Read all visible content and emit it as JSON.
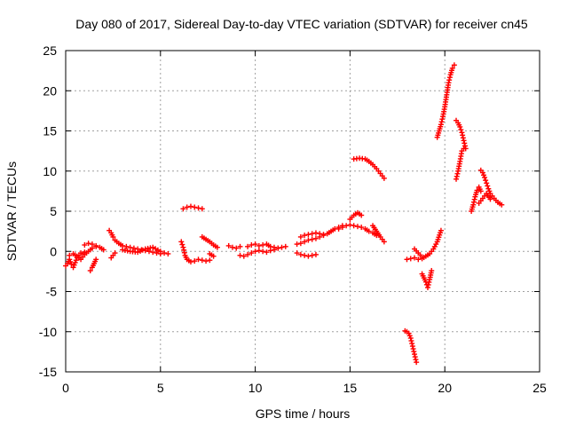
{
  "chart_data": {
    "type": "scatter",
    "title": "Day 080 of 2017, Sidereal Day-to-day VTEC variation (SDTVAR) for receiver cn45",
    "xlabel": "GPS time / hours",
    "ylabel": "SDTVAR / TECUs",
    "xlim": [
      0,
      25
    ],
    "ylim": [
      -15,
      25
    ],
    "xticks": [
      0,
      5,
      10,
      15,
      20,
      25
    ],
    "yticks": [
      -15,
      -10,
      -5,
      0,
      5,
      10,
      15,
      20,
      25
    ],
    "xtick_labels": [
      "0",
      "5",
      "10",
      "15",
      "20",
      "25"
    ],
    "ytick_labels": [
      "-15",
      "-10",
      "-5",
      "0",
      "5",
      "10",
      "15",
      "20",
      "25"
    ],
    "grid": true,
    "marker": "+",
    "color": "#ff0000",
    "series": [
      {
        "name": "SDTVAR",
        "segments": [
          {
            "x": [
              0.0,
              0.1,
              0.2,
              0.3,
              0.4,
              0.5,
              0.6,
              0.7,
              0.8,
              0.9,
              1.0
            ],
            "y": [
              -1.8,
              -1.5,
              -1.0,
              -1.6,
              -2.0,
              -1.4,
              -0.8,
              -0.5,
              -0.2,
              -0.3,
              -0.1
            ]
          },
          {
            "x": [
              0.2,
              0.4,
              0.6,
              0.8,
              1.0,
              1.2,
              1.4,
              1.6
            ],
            "y": [
              -0.5,
              -0.3,
              -0.6,
              -1.0,
              -0.4,
              0.0,
              0.4,
              0.6
            ]
          },
          {
            "x": [
              1.0,
              1.2,
              1.4,
              1.6,
              1.8,
              2.0
            ],
            "y": [
              0.8,
              1.0,
              0.9,
              0.7,
              0.5,
              0.2
            ]
          },
          {
            "x": [
              1.3,
              1.4,
              1.5,
              1.6
            ],
            "y": [
              -2.4,
              -2.0,
              -1.5,
              -1.0
            ]
          },
          {
            "x": [
              2.3,
              2.4,
              2.5,
              2.6,
              2.8,
              3.0,
              3.2,
              3.4,
              3.6,
              3.8,
              4.0,
              4.2,
              4.4,
              4.6,
              4.8,
              5.0,
              5.2,
              5.4
            ],
            "y": [
              2.6,
              2.3,
              1.8,
              1.4,
              1.0,
              0.7,
              0.6,
              0.5,
              0.4,
              0.3,
              0.2,
              0.1,
              0.0,
              -0.1,
              -0.2,
              -0.3,
              -0.2,
              -0.3
            ]
          },
          {
            "x": [
              2.4,
              2.5,
              2.6
            ],
            "y": [
              -0.8,
              -0.5,
              -0.2
            ]
          },
          {
            "x": [
              3.0,
              3.4,
              3.8,
              4.2,
              4.6,
              5.0
            ],
            "y": [
              0.2,
              0.0,
              -0.1,
              0.3,
              0.5,
              0.0
            ]
          },
          {
            "x": [
              6.2,
              6.4,
              6.6,
              6.8,
              7.0,
              7.2
            ],
            "y": [
              5.3,
              5.5,
              5.6,
              5.5,
              5.4,
              5.3
            ]
          },
          {
            "x": [
              6.1,
              6.2,
              6.3,
              6.4,
              6.6,
              6.8,
              7.0,
              7.2,
              7.4,
              7.6
            ],
            "y": [
              1.2,
              0.5,
              -0.5,
              -1.0,
              -1.3,
              -1.2,
              -1.0,
              -1.1,
              -1.2,
              -1.1
            ]
          },
          {
            "x": [
              7.2,
              7.4,
              7.6,
              7.8,
              8.0
            ],
            "y": [
              1.8,
              1.5,
              1.2,
              0.8,
              0.5
            ]
          },
          {
            "x": [
              7.6,
              7.8
            ],
            "y": [
              -0.3,
              -0.6
            ]
          },
          {
            "x": [
              8.6,
              8.8,
              9.0,
              9.2
            ],
            "y": [
              0.7,
              0.5,
              0.4,
              0.6
            ]
          },
          {
            "x": [
              9.2,
              9.4,
              9.6,
              9.8,
              10.0,
              10.2,
              10.4,
              10.6,
              10.8,
              11.0,
              11.2,
              11.4,
              11.6
            ],
            "y": [
              -0.5,
              -0.6,
              -0.4,
              -0.2,
              0.0,
              0.1,
              0.0,
              -0.1,
              0.1,
              0.2,
              0.4,
              0.5,
              0.6
            ]
          },
          {
            "x": [
              9.6,
              9.8,
              10.0,
              10.2,
              10.4,
              10.6,
              10.8,
              11.0,
              11.2
            ],
            "y": [
              0.6,
              0.8,
              0.9,
              0.7,
              0.8,
              0.9,
              0.6,
              0.5,
              0.4
            ]
          },
          {
            "x": [
              12.2,
              12.4,
              12.6,
              12.8,
              13.0,
              13.2
            ],
            "y": [
              -0.2,
              -0.4,
              -0.5,
              -0.6,
              -0.5,
              -0.4
            ]
          },
          {
            "x": [
              12.2,
              12.4,
              12.6,
              12.8,
              13.0,
              13.2,
              13.4,
              13.6,
              13.8,
              14.0,
              14.2,
              14.4,
              14.6
            ],
            "y": [
              0.9,
              1.0,
              1.2,
              1.4,
              1.5,
              1.6,
              1.8,
              2.0,
              2.2,
              2.5,
              2.8,
              3.0,
              3.2
            ]
          },
          {
            "x": [
              12.4,
              12.6,
              12.8,
              13.0,
              13.2,
              13.4,
              13.6
            ],
            "y": [
              1.8,
              2.0,
              2.1,
              2.2,
              2.3,
              2.2,
              2.1
            ]
          },
          {
            "x": [
              14.4,
              14.6,
              14.8,
              15.0,
              15.2,
              15.4,
              15.6,
              15.8,
              16.0,
              16.2,
              16.4
            ],
            "y": [
              2.8,
              3.0,
              3.2,
              3.3,
              3.2,
              3.1,
              3.0,
              2.8,
              2.5,
              2.3,
              2.0
            ]
          },
          {
            "x": [
              15.0,
              15.2,
              15.4,
              15.6
            ],
            "y": [
              4.0,
              4.5,
              4.8,
              4.5
            ]
          },
          {
            "x": [
              15.2,
              15.5,
              15.8,
              16.0,
              16.2,
              16.4,
              16.6,
              16.8
            ],
            "y": [
              11.5,
              11.6,
              11.5,
              11.2,
              10.8,
              10.3,
              9.7,
              9.1
            ]
          },
          {
            "x": [
              16.2,
              16.4,
              16.6,
              16.8
            ],
            "y": [
              3.2,
              2.5,
              1.8,
              1.2
            ]
          },
          {
            "x": [
              18.0,
              18.2,
              18.4,
              18.6,
              18.8,
              19.0,
              19.2,
              19.4,
              19.6,
              19.8
            ],
            "y": [
              -1.0,
              -0.9,
              -0.8,
              -1.0,
              -0.9,
              -0.6,
              -0.3,
              0.3,
              1.2,
              2.6
            ]
          },
          {
            "x": [
              18.4,
              18.6,
              18.8
            ],
            "y": [
              0.3,
              -0.2,
              -0.7
            ]
          },
          {
            "x": [
              18.8,
              18.9,
              19.0,
              19.1,
              19.2,
              19.3
            ],
            "y": [
              -2.8,
              -3.3,
              -3.8,
              -4.5,
              -3.5,
              -2.4
            ]
          },
          {
            "x": [
              17.9,
              18.0,
              18.1,
              18.2,
              18.3,
              18.4,
              18.5
            ],
            "y": [
              -9.9,
              -10.0,
              -10.2,
              -10.8,
              -11.8,
              -12.8,
              -13.8
            ]
          },
          {
            "x": [
              19.6,
              19.7,
              19.8,
              19.9,
              20.0,
              20.1,
              20.2,
              20.3,
              20.4,
              20.5
            ],
            "y": [
              14.2,
              15.0,
              15.8,
              16.8,
              18.0,
              19.5,
              21.0,
              22.0,
              22.8,
              23.2
            ]
          },
          {
            "x": [
              20.6,
              20.7,
              20.8,
              20.9,
              21.0,
              21.1
            ],
            "y": [
              16.3,
              16.0,
              15.5,
              14.8,
              13.8,
              12.8
            ]
          },
          {
            "x": [
              20.6,
              20.7,
              20.8,
              20.9,
              21.0
            ],
            "y": [
              9.0,
              10.0,
              11.2,
              12.5,
              12.8
            ]
          },
          {
            "x": [
              21.4,
              21.5,
              21.6,
              21.7,
              21.8,
              21.9
            ],
            "y": [
              5.0,
              5.8,
              6.8,
              7.6,
              8.0,
              7.5
            ]
          },
          {
            "x": [
              21.9,
              22.0,
              22.1,
              22.2,
              22.3,
              22.4,
              22.6,
              22.8,
              23.0
            ],
            "y": [
              10.1,
              9.8,
              9.2,
              8.5,
              7.8,
              7.2,
              6.6,
              6.1,
              5.8
            ]
          },
          {
            "x": [
              21.8,
              22.0,
              22.2,
              22.4
            ],
            "y": [
              6.0,
              6.6,
              7.2,
              6.5
            ]
          }
        ]
      }
    ]
  }
}
